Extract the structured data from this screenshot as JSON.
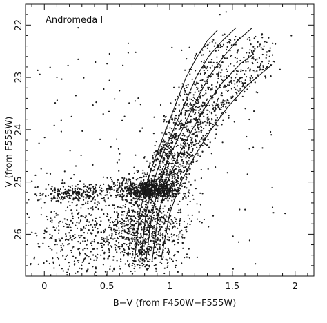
{
  "chart_data": {
    "type": "scatter",
    "annotation": "Andromeda I",
    "xlabel": "B−V (from F450W−F555W)",
    "ylabel": "V (from F555W)",
    "xlim": [
      -0.15,
      2.15
    ],
    "ylim": [
      26.8,
      21.6
    ],
    "y_inverted": true,
    "grid": false,
    "x_ticks": [
      {
        "value": 0,
        "label": "0"
      },
      {
        "value": 0.5,
        "label": "0.5"
      },
      {
        "value": 1,
        "label": "1"
      },
      {
        "value": 1.5,
        "label": "1.5"
      },
      {
        "value": 2,
        "label": "2"
      }
    ],
    "y_ticks": [
      {
        "value": 22,
        "label": "22"
      },
      {
        "value": 23,
        "label": "23"
      },
      {
        "value": 24,
        "label": "24"
      },
      {
        "value": 25,
        "label": "25"
      },
      {
        "value": 26,
        "label": "26"
      }
    ],
    "isochrones": [
      {
        "x": [
          0.72,
          0.76,
          0.82,
          0.89,
          0.97,
          1.05,
          1.13,
          1.22,
          1.3,
          1.38
        ],
        "y": [
          26.5,
          25.6,
          25.0,
          24.5,
          24.0,
          23.5,
          23.0,
          22.6,
          22.3,
          22.1
        ]
      },
      {
        "x": [
          0.77,
          0.81,
          0.87,
          0.94,
          1.03,
          1.12,
          1.21,
          1.31,
          1.42,
          1.53
        ],
        "y": [
          26.5,
          25.6,
          25.0,
          24.5,
          24.0,
          23.5,
          23.0,
          22.6,
          22.3,
          22.05
        ]
      },
      {
        "x": [
          0.81,
          0.86,
          0.92,
          1.0,
          1.1,
          1.2,
          1.31,
          1.43,
          1.54,
          1.66
        ],
        "y": [
          26.5,
          25.6,
          25.0,
          24.5,
          24.0,
          23.5,
          23.0,
          22.6,
          22.3,
          22.05
        ]
      },
      {
        "x": [
          0.86,
          0.91,
          0.98,
          1.07,
          1.18,
          1.3,
          1.42,
          1.56,
          1.67
        ],
        "y": [
          26.5,
          25.6,
          25.0,
          24.5,
          24.0,
          23.5,
          23.1,
          22.75,
          22.55
        ]
      },
      {
        "x": [
          0.93,
          1.0,
          1.09,
          1.2,
          1.33,
          1.47,
          1.62,
          1.82
        ],
        "y": [
          26.5,
          25.6,
          25.0,
          24.5,
          24.0,
          23.55,
          23.15,
          22.75
        ]
      }
    ],
    "stars": [
      {
        "x": 0.27,
        "y": 22.05
      },
      {
        "x": 0.52,
        "y": 22.55
      },
      {
        "x": 0.67,
        "y": 22.35
      },
      {
        "x": 1.45,
        "y": 21.75
      },
      {
        "x": 1.88,
        "y": 22.85
      },
      {
        "x": 0.47,
        "y": 23.7
      },
      {
        "x": 1.92,
        "y": 25.6
      },
      {
        "x": 1.97,
        "y": 22.2
      },
      {
        "x": 1.4,
        "y": 21.8
      },
      {
        "x": 1.55,
        "y": 26.15
      },
      {
        "x": 1.62,
        "y": 24.85
      },
      {
        "x": 1.74,
        "y": 24.35
      }
    ],
    "populations": [
      {
        "name": "",
        "count": 720,
        "shape": "gauss",
        "cx": 0.82,
        "cy": 25.15,
        "sx": 0.14,
        "sy": 0.09
      },
      {
        "name": "",
        "count": 230,
        "shape": "gauss",
        "cx": 0.22,
        "cy": 25.22,
        "sx": 0.13,
        "sy": 0.09
      },
      {
        "name": "",
        "count": 900,
        "shape": "gauss",
        "cx": 0.8,
        "cy": 25.9,
        "sx": 0.16,
        "sy": 0.45
      },
      {
        "name": "",
        "count": 380,
        "shape": "gauss",
        "cx": 0.28,
        "cy": 26.05,
        "sx": 0.22,
        "sy": 0.4
      },
      {
        "name": "",
        "count": 1300,
        "shape": "rgb",
        "y0": 22.2,
        "y1": 25.3,
        "sx": 0.09
      },
      {
        "name": "",
        "count": 160,
        "shape": "uniform",
        "x0": -0.1,
        "x1": 1.85,
        "y0": 22.4,
        "y1": 26.7
      }
    ]
  }
}
